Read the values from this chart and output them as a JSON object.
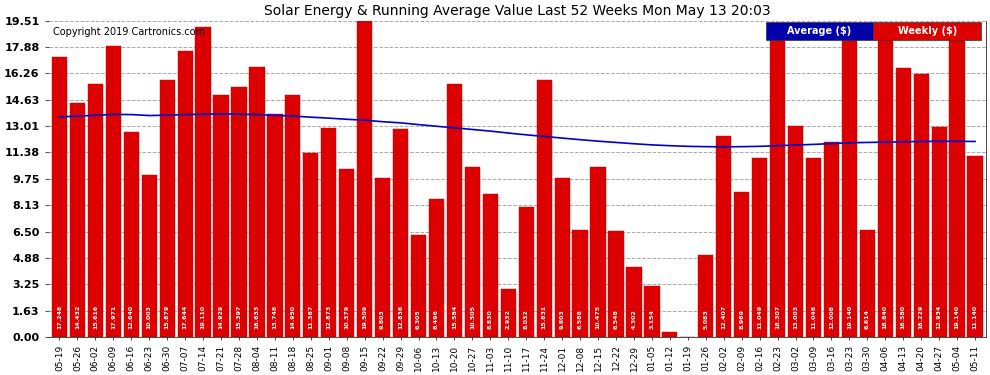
{
  "title": "Solar Energy & Running Average Value Last 52 Weeks Mon May 13 20:03",
  "copyright": "Copyright 2019 Cartronics.com",
  "bar_color": "#dd0000",
  "bar_edge_color": "#bb0000",
  "line_color": "#0000cc",
  "background_color": "#ffffff",
  "grid_color": "#aaaaaa",
  "legend_avg_label": "Average ($)",
  "legend_weekly_label": "Weekly ($)",
  "ylim": [
    0.0,
    19.51
  ],
  "yticks": [
    0.0,
    1.63,
    3.25,
    4.88,
    6.5,
    8.13,
    9.75,
    11.38,
    13.01,
    14.63,
    16.26,
    17.88,
    19.51
  ],
  "categories": [
    "05-19",
    "05-26",
    "06-02",
    "06-09",
    "06-16",
    "06-23",
    "06-30",
    "07-07",
    "07-14",
    "07-21",
    "07-28",
    "08-04",
    "08-11",
    "08-18",
    "08-25",
    "09-01",
    "09-08",
    "09-15",
    "09-22",
    "09-29",
    "10-06",
    "10-13",
    "10-20",
    "10-27",
    "11-03",
    "11-10",
    "11-17",
    "11-24",
    "12-01",
    "12-08",
    "12-15",
    "12-22",
    "12-29",
    "01-05",
    "01-12",
    "01-19",
    "01-26",
    "02-02",
    "02-09",
    "02-16",
    "02-23",
    "03-02",
    "03-09",
    "03-16",
    "03-23",
    "03-30",
    "04-06",
    "04-13",
    "04-20",
    "04-27",
    "05-04",
    "05-11"
  ],
  "weekly_values": [
    17.248,
    14.432,
    15.616,
    17.971,
    12.64,
    10.003,
    15.879,
    17.644,
    19.11,
    14.929,
    15.397,
    16.633,
    13.748,
    14.95,
    11.367,
    12.873,
    10.379,
    19.509,
    9.803,
    12.836,
    6.305,
    8.496,
    15.584,
    10.505,
    8.83,
    2.932,
    8.032,
    15.831,
    9.803,
    6.588,
    10.475,
    6.548,
    4.302,
    3.154,
    0.332,
    0.0,
    5.083,
    12.407,
    8.969,
    11.049,
    18.307,
    13.003,
    11.048,
    12.008,
    19.14,
    6.614,
    18.84,
    16.58,
    16.229,
    12.934,
    19.14,
    11.14
  ],
  "average_values": [
    13.57,
    13.63,
    13.67,
    13.73,
    13.72,
    13.66,
    13.68,
    13.72,
    13.74,
    13.76,
    13.74,
    13.72,
    13.67,
    13.63,
    13.56,
    13.5,
    13.43,
    13.37,
    13.28,
    13.21,
    13.1,
    13.0,
    12.9,
    12.8,
    12.7,
    12.58,
    12.47,
    12.37,
    12.27,
    12.17,
    12.08,
    12.0,
    11.92,
    11.85,
    11.8,
    11.76,
    11.74,
    11.73,
    11.74,
    11.76,
    11.8,
    11.84,
    11.88,
    11.93,
    11.98,
    12.0,
    12.02,
    12.04,
    12.06,
    12.07,
    12.07,
    12.06
  ]
}
